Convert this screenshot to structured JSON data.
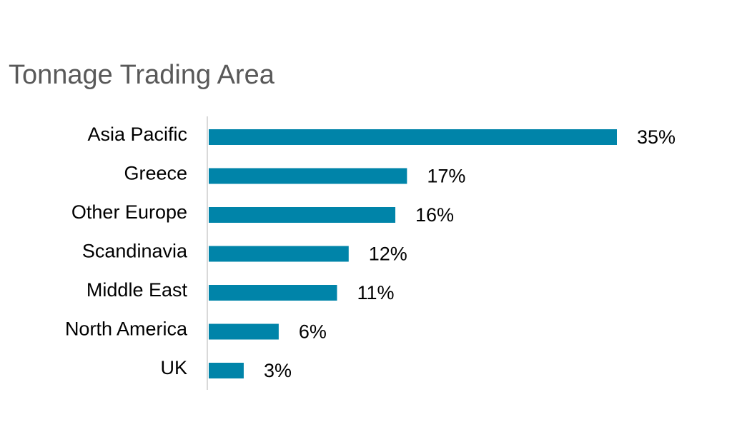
{
  "chart_data": {
    "type": "bar",
    "orientation": "horizontal",
    "title": "Tonnage Trading Area",
    "categories": [
      "Asia Pacific",
      "Greece",
      "Other Europe",
      "Scandinavia",
      "Middle East",
      "North America",
      "UK"
    ],
    "values": [
      35,
      17,
      16,
      12,
      11,
      6,
      3
    ],
    "value_labels": [
      "35%",
      "17%",
      "16%",
      "12%",
      "11%",
      "6%",
      "3%"
    ],
    "xlim": [
      0,
      35
    ],
    "grid": false,
    "legend": "none",
    "bar_color": "#0084A9",
    "axis_color": "#D9D9D9"
  }
}
